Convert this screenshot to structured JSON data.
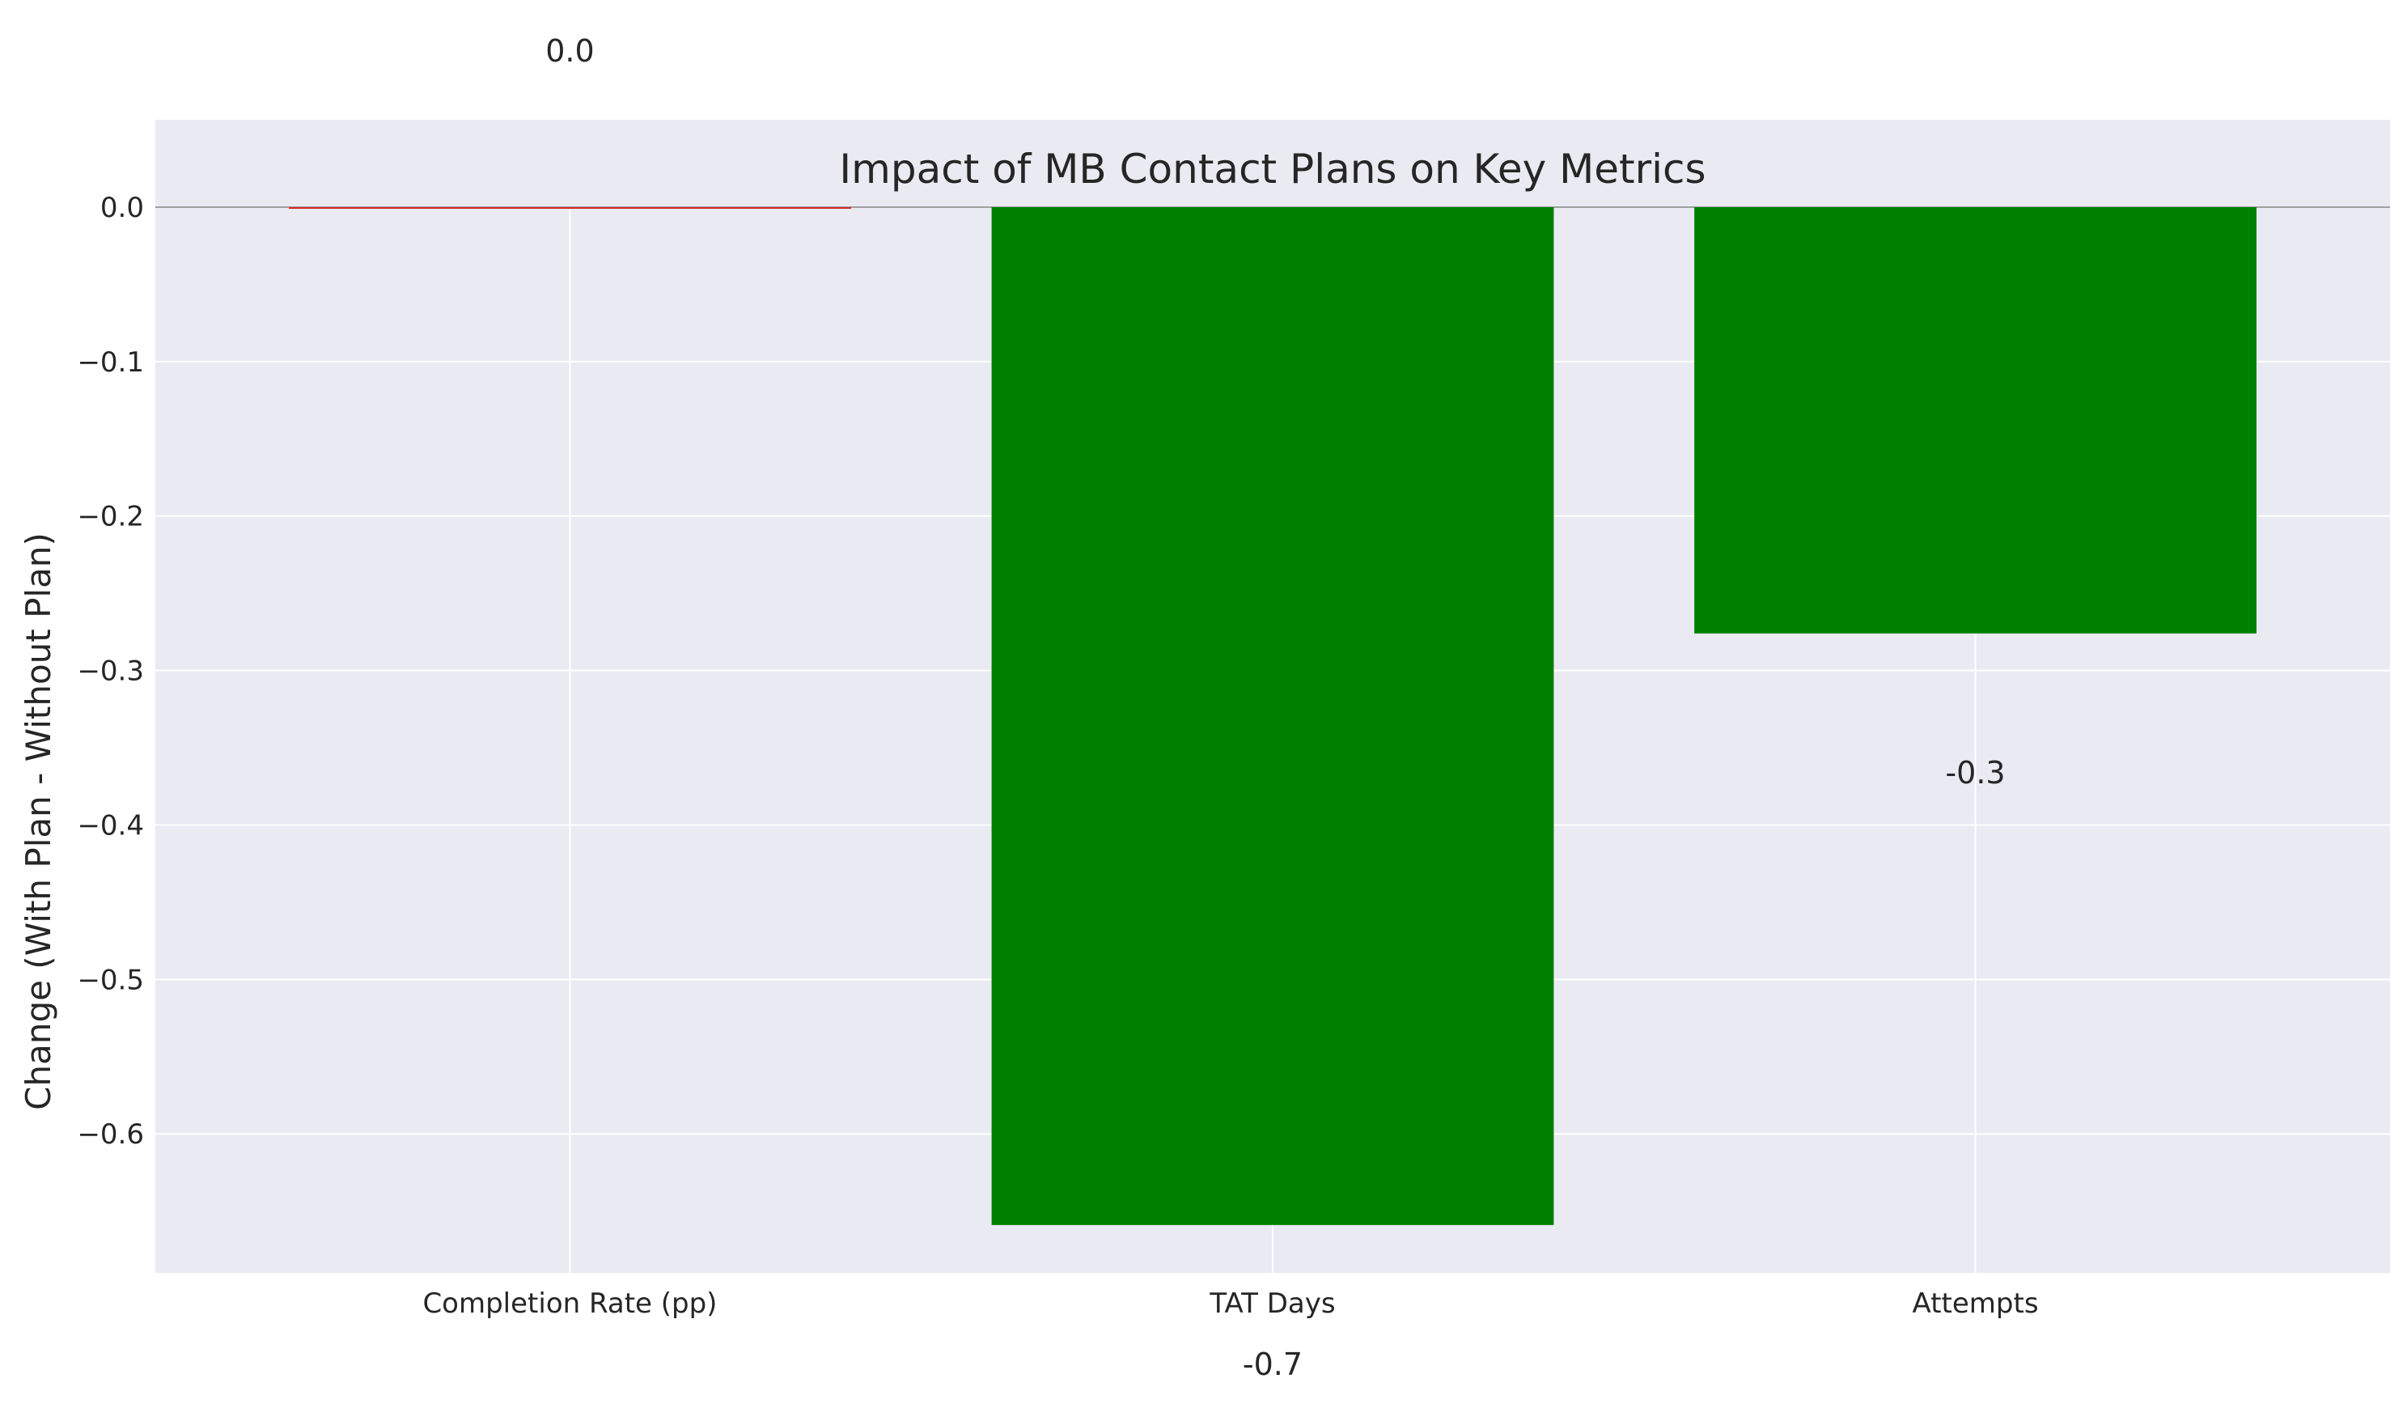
{
  "chart_data": {
    "type": "bar",
    "title": "Impact of MB Contact Plans on Key Metrics",
    "xlabel": "",
    "ylabel": "Change (With Plan - Without Plan)",
    "categories": [
      "Completion Rate (pp)",
      "TAT Days",
      "Attempts"
    ],
    "values": [
      0.0,
      -0.659,
      -0.276
    ],
    "value_labels": [
      "0.0",
      "-0.7",
      "-0.3"
    ],
    "bar_colors": [
      "#d62728",
      "#008000",
      "#008000"
    ],
    "ylim": [
      -0.69,
      0.0
    ],
    "yticks": [
      0.0,
      -0.1,
      -0.2,
      -0.3,
      -0.4,
      -0.5,
      -0.6
    ],
    "ytick_labels": [
      "0.0",
      "−0.1",
      "−0.2",
      "−0.3",
      "−0.4",
      "−0.5",
      "−0.6"
    ],
    "grid": true,
    "legend": "none",
    "colors": {
      "plot_background": "#eaeaf2",
      "grid": "#ffffff",
      "zero_line": "#a0a0a0",
      "text": "#262626"
    }
  }
}
